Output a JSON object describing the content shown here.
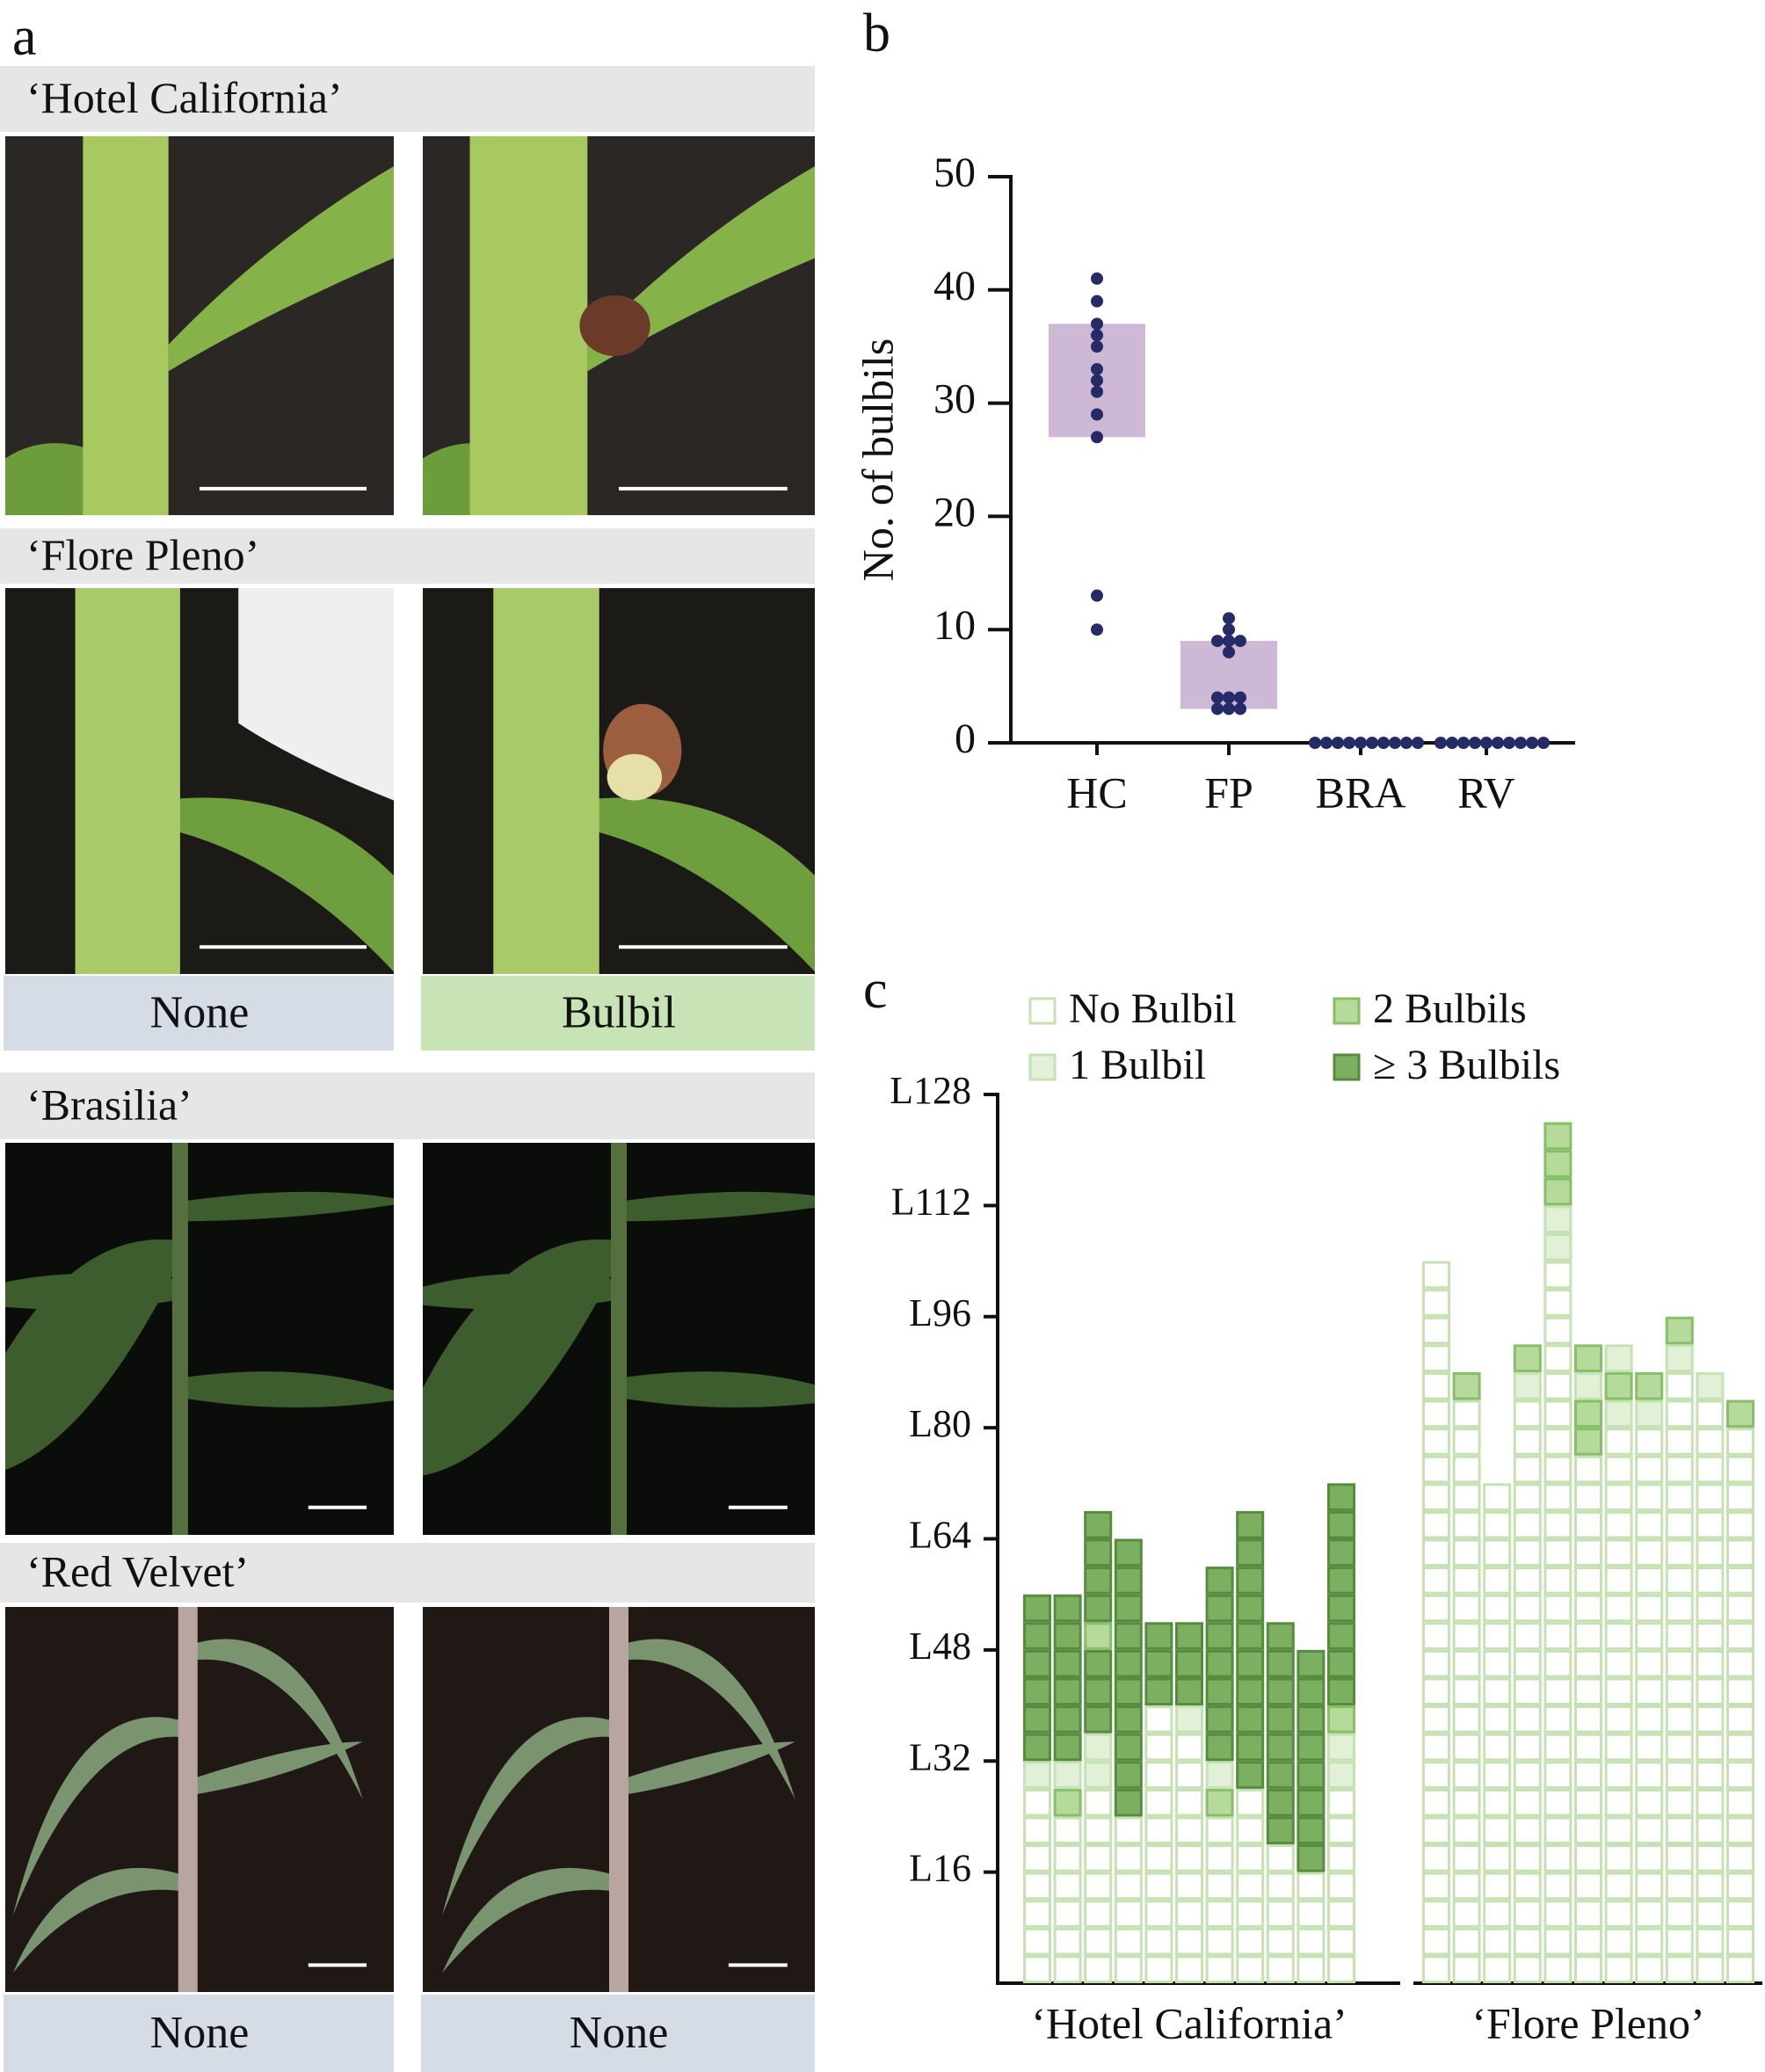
{
  "panel_labels": [
    "a",
    "b",
    "c"
  ],
  "photo_panel": {
    "varieties": [
      "‘Hotel California’",
      "‘Flore Pleno’",
      "‘Brasilia’",
      "‘Red Velvet’"
    ],
    "phenotype_labels": [
      "None",
      "Bulbil",
      "None",
      "None"
    ],
    "phenotype_colors": [
      "#d6dce6",
      "#c8e4b6",
      "#d6dce6",
      "#d6dce6"
    ]
  },
  "chart_data": [
    {
      "type": "strip",
      "ylabel": "No. of bulbils",
      "categories": [
        "HC",
        "FP",
        "BRA",
        "RV"
      ],
      "values": [
        [
          41,
          39,
          37,
          36,
          35,
          33,
          32,
          31,
          29,
          27,
          13,
          10
        ],
        [
          11,
          10,
          9,
          9,
          9,
          8,
          4,
          4,
          4,
          3,
          3,
          3
        ],
        [
          0,
          0,
          0,
          0,
          0,
          0,
          0,
          0,
          0,
          0
        ],
        [
          0,
          0,
          0,
          0,
          0,
          0,
          0,
          0,
          0,
          0
        ]
      ],
      "ranges": [
        [
          27,
          37
        ],
        [
          3,
          9
        ],
        null,
        null
      ],
      "color": "#262a66",
      "range_color": "#cdb8d6",
      "ylim": [
        0,
        50
      ],
      "yticks": [
        0,
        10,
        20,
        30,
        40,
        50
      ]
    },
    {
      "type": "waffle",
      "legend": "top",
      "categories": [
        "No Bulbil",
        "1 Bulbil",
        "2 Bulbils",
        "≥ 3 Bulbils"
      ],
      "colors": [
        "#ffffff",
        "#e2f0d7",
        "#b6da9b",
        "#7daf60"
      ],
      "edge_colors": [
        "#c6e2b4",
        "#c6e2b4",
        "#86bf68",
        "#568c40"
      ],
      "ylim": [
        0,
        128
      ],
      "yticks": [
        {
          "value": 16,
          "label": "L16"
        },
        {
          "value": 32,
          "label": "L32"
        },
        {
          "value": 48,
          "label": "L48"
        },
        {
          "value": 64,
          "label": "L64"
        },
        {
          "value": 80,
          "label": "L80"
        },
        {
          "value": 96,
          "label": "L96"
        },
        {
          "value": 112,
          "label": "L112"
        },
        {
          "value": 128,
          "label": "L128"
        }
      ],
      "groups": [
        {
          "name": "‘Hotel California’",
          "plants": [
            [
              [
                0,
                28
              ],
              [
                1,
                4
              ],
              [
                3,
                24
              ]
            ],
            [
              [
                0,
                24
              ],
              [
                2,
                4
              ],
              [
                1,
                4
              ],
              [
                3,
                24
              ]
            ],
            [
              [
                0,
                28
              ],
              [
                1,
                8
              ],
              [
                3,
                12
              ],
              [
                2,
                4
              ],
              [
                3,
                16
              ]
            ],
            [
              [
                0,
                24
              ],
              [
                3,
                40
              ]
            ],
            [
              [
                0,
                40
              ],
              [
                3,
                12
              ]
            ],
            [
              [
                0,
                36
              ],
              [
                1,
                4
              ],
              [
                3,
                12
              ]
            ],
            [
              [
                0,
                24
              ],
              [
                2,
                4
              ],
              [
                1,
                4
              ],
              [
                3,
                28
              ]
            ],
            [
              [
                0,
                28
              ],
              [
                3,
                40
              ]
            ],
            [
              [
                0,
                20
              ],
              [
                3,
                32
              ]
            ],
            [
              [
                0,
                16
              ],
              [
                3,
                32
              ]
            ],
            [
              [
                0,
                28
              ],
              [
                1,
                8
              ],
              [
                2,
                4
              ],
              [
                3,
                32
              ]
            ]
          ]
        },
        {
          "name": "‘Flore Pleno’",
          "plants": [
            [
              [
                0,
                104
              ]
            ],
            [
              [
                0,
                84
              ],
              [
                2,
                4
              ]
            ],
            [
              [
                0,
                72
              ]
            ],
            [
              [
                0,
                84
              ],
              [
                1,
                4
              ],
              [
                2,
                4
              ]
            ],
            [
              [
                0,
                104
              ],
              [
                1,
                8
              ],
              [
                2,
                12
              ]
            ],
            [
              [
                0,
                76
              ],
              [
                2,
                8
              ],
              [
                1,
                4
              ],
              [
                2,
                4
              ]
            ],
            [
              [
                0,
                80
              ],
              [
                1,
                4
              ],
              [
                2,
                4
              ],
              [
                1,
                4
              ]
            ],
            [
              [
                0,
                80
              ],
              [
                1,
                4
              ],
              [
                2,
                4
              ]
            ],
            [
              [
                0,
                88
              ],
              [
                1,
                4
              ],
              [
                2,
                4
              ]
            ],
            [
              [
                0,
                84
              ],
              [
                1,
                4
              ]
            ],
            [
              [
                0,
                80
              ],
              [
                2,
                4
              ]
            ]
          ]
        }
      ]
    }
  ]
}
